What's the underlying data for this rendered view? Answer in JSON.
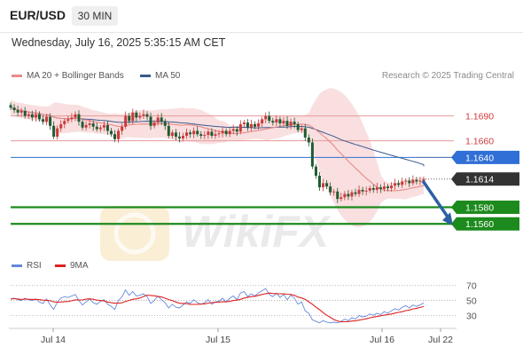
{
  "header": {
    "symbol": "EUR/USD",
    "timeframe": "30 MIN",
    "datetime": "Wednesday, July 16, 2025 5:35:15 AM CET"
  },
  "legend": {
    "ma20": "MA 20 + Bollinger Bands",
    "ma50": "MA 50",
    "credit": "Research © 2025 Trading Central",
    "rsi": "RSI",
    "rsi_ma": "9MA"
  },
  "watermark": "WikiFX",
  "colors": {
    "ma20": "#e88a8a",
    "ma50": "#3a5a8f",
    "rsi": "#6688dd",
    "rsi_ma": "#dd2222",
    "candle_up": "#c93a3a",
    "candle_down": "#1f5a32",
    "support": "#1c8a1c",
    "pivot": "#2f6fd6",
    "resistance": "#e69a9a",
    "last_price_bg": "#333333",
    "forecast_arrow": "#2d5fa2"
  },
  "chart_data": {
    "type": "candlestick",
    "y_range": [
      1.1525,
      1.1712
    ],
    "price_levels": [
      {
        "label": "1.1690",
        "value": 1.169,
        "kind": "resistance"
      },
      {
        "label": "1.1660",
        "value": 1.166,
        "kind": "resistance"
      },
      {
        "label": "1.1640",
        "value": 1.164,
        "kind": "pivot"
      },
      {
        "label": "1.1614",
        "value": 1.1614,
        "kind": "last"
      },
      {
        "label": "1.1580",
        "value": 1.158,
        "kind": "support"
      },
      {
        "label": "1.1560",
        "value": 1.156,
        "kind": "support"
      }
    ],
    "x_labels": [
      "Jul 14",
      "Jul 15",
      "Jul 16",
      "Jul 22"
    ],
    "forecast": {
      "from": 1.1614,
      "to": 1.156
    },
    "closes": [
      1.17,
      1.1697,
      1.1694,
      1.1696,
      1.169,
      1.1692,
      1.1688,
      1.1692,
      1.1686,
      1.1683,
      1.1689,
      1.1678,
      1.1665,
      1.1675,
      1.168,
      1.1684,
      1.1686,
      1.1688,
      1.1692,
      1.1683,
      1.1676,
      1.1679,
      1.1681,
      1.1677,
      1.1674,
      1.1676,
      1.1679,
      1.1672,
      1.1668,
      1.1662,
      1.1672,
      1.1677,
      1.169,
      1.1684,
      1.1694,
      1.1688,
      1.169,
      1.1692,
      1.1689,
      1.1678,
      1.1682,
      1.1688,
      1.1683,
      1.1678,
      1.1666,
      1.167,
      1.1665,
      1.1663,
      1.1666,
      1.167,
      1.1668,
      1.1672,
      1.1668,
      1.1666,
      1.1667,
      1.1671,
      1.1666,
      1.1668,
      1.1669,
      1.1672,
      1.1668,
      1.1672,
      1.1674,
      1.1671,
      1.168,
      1.1682,
      1.1676,
      1.168,
      1.1677,
      1.1681,
      1.1686,
      1.169,
      1.1684,
      1.1682,
      1.1686,
      1.1681,
      1.1684,
      1.1678,
      1.1683,
      1.168,
      1.1673,
      1.1675,
      1.1664,
      1.1658,
      1.1629,
      1.1618,
      1.1604,
      1.1609,
      1.1605,
      1.1598,
      1.1599,
      1.159,
      1.1592,
      1.1596,
      1.1593,
      1.1598,
      1.1596,
      1.1601,
      1.1599,
      1.16,
      1.1603,
      1.1601,
      1.1604,
      1.1602,
      1.1605,
      1.1603,
      1.1606,
      1.1609,
      1.1607,
      1.1611,
      1.1612,
      1.1609,
      1.1613,
      1.1611,
      1.1612,
      1.1614
    ],
    "rsi": {
      "levels": [
        70,
        50,
        30
      ],
      "y_range": [
        15,
        78
      ],
      "rsi_values": [
        52,
        53,
        51,
        50,
        53,
        51,
        50,
        52,
        48,
        46,
        52,
        44,
        38,
        48,
        53,
        55,
        54,
        56,
        58,
        50,
        44,
        48,
        52,
        47,
        45,
        49,
        51,
        45,
        42,
        38,
        50,
        55,
        64,
        57,
        62,
        56,
        57,
        59,
        55,
        46,
        50,
        56,
        51,
        47,
        40,
        45,
        41,
        40,
        44,
        48,
        46,
        51,
        47,
        45,
        47,
        51,
        45,
        48,
        49,
        53,
        48,
        53,
        56,
        51,
        60,
        62,
        55,
        59,
        56,
        60,
        63,
        66,
        58,
        55,
        60,
        54,
        58,
        51,
        57,
        53,
        45,
        48,
        36,
        33,
        24,
        22,
        20,
        23,
        21,
        20,
        21,
        20,
        22,
        25,
        23,
        27,
        25,
        30,
        28,
        29,
        32,
        30,
        33,
        31,
        35,
        33,
        36,
        39,
        37,
        41,
        43,
        40,
        44,
        42,
        44,
        47
      ]
    }
  }
}
